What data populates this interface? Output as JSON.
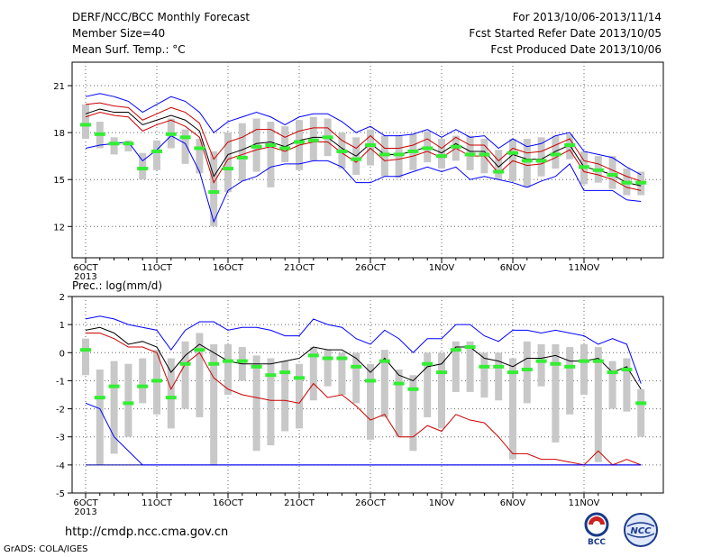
{
  "header": {
    "title": "DERF/NCC/BCC Monthly Forecast",
    "member_size": "Member Size=40",
    "variable": "Mean Surf. Temp.: °C",
    "period": "For 2013/10/06-2013/11/14",
    "started": "Fcst Started Refer Date 2013/10/05",
    "produced": "Fcst Produced Date 2013/10/06"
  },
  "footer": {
    "url": "http://cmdp.ncc.cma.gov.cn",
    "credit": "GrADS: COLA/IGES",
    "logo_bcc": "BCC",
    "logo_ncc": "NCC"
  },
  "colors": {
    "max_min": "#0000ff",
    "spread": "#cc0000",
    "mean": "#000000",
    "median": "#33ee33",
    "box": "#c8c8c8",
    "base": "#0000aa"
  },
  "chart_data": [
    {
      "type": "box",
      "title": "Mean Surf. Temp.: °C",
      "ylim": [
        10.0,
        22.5
      ],
      "yticks": [
        12,
        15,
        18,
        21
      ],
      "xlabels": [
        "6OCT",
        "11OCT",
        "16OCT",
        "21OCT",
        "26OCT",
        "1NOV",
        "6NOV",
        "11NOV"
      ],
      "xyear": "2013",
      "days": 40,
      "median": [
        18.5,
        17.9,
        17.3,
        17.3,
        15.7,
        16.8,
        17.9,
        17.7,
        17.0,
        14.2,
        15.7,
        16.4,
        17.1,
        17.2,
        17.0,
        17.4,
        17.5,
        17.7,
        16.8,
        16.3,
        17.2,
        16.6,
        16.6,
        16.8,
        17.0,
        16.5,
        17.1,
        16.6,
        16.6,
        15.5,
        16.7,
        16.2,
        16.2,
        16.6,
        17.2,
        15.8,
        15.6,
        15.3,
        14.8,
        14.8
      ],
      "box_top": [
        19.8,
        18.7,
        17.7,
        17.5,
        16.7,
        17.5,
        18.9,
        18.2,
        17.6,
        16.8,
        18.0,
        18.6,
        18.9,
        18.7,
        18.4,
        18.8,
        19.0,
        18.9,
        18.0,
        17.7,
        18.2,
        17.8,
        17.8,
        17.9,
        18.1,
        17.6,
        17.8,
        17.8,
        17.6,
        16.9,
        17.6,
        17.6,
        17.7,
        17.8,
        17.9,
        16.8,
        16.5,
        16.5,
        15.7,
        15.5
      ],
      "box_bottom": [
        17.6,
        17.0,
        16.6,
        16.8,
        15.0,
        15.6,
        17.0,
        16.0,
        15.4,
        12.0,
        14.2,
        14.9,
        15.5,
        14.5,
        16.1,
        15.6,
        16.2,
        16.5,
        15.7,
        15.3,
        15.9,
        15.2,
        15.1,
        15.6,
        16.1,
        15.7,
        16.2,
        15.6,
        15.4,
        15.0,
        14.9,
        14.5,
        15.2,
        15.7,
        16.3,
        14.7,
        14.8,
        14.4,
        14.0,
        14.0
      ],
      "series": [
        {
          "name": "max",
          "values": [
            20.3,
            20.5,
            20.3,
            20.0,
            19.3,
            19.8,
            20.3,
            20.0,
            19.3,
            18.0,
            18.7,
            19.0,
            19.3,
            19.0,
            18.5,
            19.0,
            19.2,
            19.2,
            18.7,
            18.0,
            18.4,
            17.8,
            17.8,
            17.9,
            18.2,
            17.7,
            18.2,
            17.7,
            17.8,
            17.0,
            17.6,
            17.1,
            17.3,
            17.8,
            18.0,
            16.8,
            16.6,
            16.4,
            15.8,
            15.3
          ]
        },
        {
          "name": "upper",
          "values": [
            19.8,
            19.9,
            19.7,
            19.6,
            18.8,
            19.2,
            19.6,
            19.3,
            18.6,
            16.3,
            17.4,
            17.7,
            18.2,
            18.2,
            17.7,
            18.1,
            18.3,
            18.3,
            17.5,
            17.0,
            17.8,
            17.0,
            17.0,
            17.2,
            17.6,
            17.0,
            17.7,
            17.2,
            17.2,
            16.2,
            17.0,
            16.7,
            16.8,
            17.2,
            17.6,
            16.2,
            16.0,
            15.6,
            15.2,
            14.9
          ]
        },
        {
          "name": "mean",
          "values": [
            19.2,
            19.5,
            19.3,
            19.3,
            18.5,
            18.8,
            19.1,
            18.8,
            18.1,
            15.2,
            16.6,
            16.9,
            17.3,
            17.4,
            17.1,
            17.5,
            17.7,
            17.7,
            17.0,
            16.5,
            17.3,
            16.6,
            16.6,
            16.8,
            17.1,
            16.7,
            17.3,
            16.8,
            16.8,
            15.8,
            16.6,
            16.3,
            16.3,
            16.8,
            17.2,
            15.8,
            15.6,
            15.3,
            14.8,
            14.6
          ]
        },
        {
          "name": "lower",
          "values": [
            19.0,
            19.3,
            19.1,
            19.0,
            18.1,
            18.5,
            18.8,
            18.4,
            17.7,
            14.8,
            16.3,
            16.6,
            16.9,
            17.1,
            16.8,
            17.2,
            17.4,
            17.4,
            16.7,
            16.1,
            17.0,
            16.2,
            16.3,
            16.5,
            16.8,
            16.4,
            17.0,
            16.5,
            16.5,
            15.4,
            16.2,
            15.9,
            16.0,
            16.4,
            16.9,
            15.5,
            15.3,
            15.0,
            14.5,
            14.3
          ]
        },
        {
          "name": "min",
          "values": [
            17.0,
            17.2,
            17.3,
            17.4,
            16.2,
            16.9,
            17.8,
            17.3,
            15.5,
            12.3,
            14.3,
            14.9,
            15.2,
            15.8,
            16.0,
            16.0,
            16.2,
            16.2,
            15.8,
            14.8,
            14.8,
            15.2,
            15.2,
            15.5,
            15.8,
            15.5,
            15.8,
            15.0,
            15.2,
            15.0,
            14.8,
            14.5,
            14.9,
            15.2,
            16.0,
            14.3,
            14.3,
            14.3,
            13.7,
            13.6
          ]
        }
      ]
    },
    {
      "type": "box",
      "title": "Prec.: log(mm/d)",
      "ylim": [
        -5,
        2
      ],
      "yticks": [
        -5,
        -4,
        -3,
        -2,
        -1,
        0,
        1,
        2
      ],
      "xlabels": [
        "6OCT",
        "11OCT",
        "16OCT",
        "21OCT",
        "26OCT",
        "1NOV",
        "6NOV",
        "11NOV"
      ],
      "xyear": "2013",
      "days": 40,
      "median": [
        0.1,
        -1.6,
        -1.2,
        -1.8,
        -1.2,
        -1.0,
        -1.6,
        -0.4,
        0.1,
        -0.4,
        -0.3,
        -0.3,
        -0.5,
        -0.8,
        -0.7,
        -0.9,
        -0.1,
        -0.2,
        -0.2,
        -0.5,
        -1.0,
        -0.3,
        -1.1,
        -1.3,
        -0.4,
        -0.7,
        0.1,
        0.2,
        -0.5,
        -0.5,
        -0.7,
        -0.6,
        -0.3,
        -0.4,
        -0.5,
        -0.3,
        -0.3,
        -0.7,
        -0.6,
        -1.8
      ],
      "box_top": [
        0.5,
        -0.6,
        -0.3,
        -0.4,
        -0.2,
        0.1,
        -0.2,
        0.4,
        0.7,
        0.3,
        0.3,
        0.2,
        -0.1,
        -0.2,
        -0.3,
        -0.4,
        0.2,
        0.1,
        0.0,
        0.0,
        -0.4,
        0.1,
        -0.6,
        -0.8,
        0.0,
        0.0,
        0.4,
        0.4,
        0.0,
        0.0,
        -0.2,
        0.4,
        0.3,
        0.3,
        0.2,
        0.3,
        0.2,
        -0.3,
        -0.2,
        -1.3
      ],
      "box_bottom": [
        -0.8,
        -4.0,
        -3.6,
        -3.0,
        -1.8,
        -2.2,
        -2.7,
        -2.0,
        -2.3,
        -4.0,
        -1.5,
        -1.0,
        -3.5,
        -3.3,
        -2.8,
        -2.7,
        -1.7,
        -1.2,
        -1.5,
        -1.8,
        -3.1,
        -2.3,
        -3.0,
        -3.5,
        -2.3,
        -2.7,
        -1.4,
        -1.4,
        -1.6,
        -1.7,
        -3.8,
        -1.8,
        -1.2,
        -3.2,
        -2.2,
        -1.5,
        -3.9,
        -2.0,
        -2.1,
        -3.0
      ],
      "series": [
        {
          "name": "max",
          "values": [
            1.2,
            1.3,
            1.2,
            1.0,
            0.9,
            0.8,
            0.1,
            0.8,
            1.1,
            1.1,
            0.8,
            0.9,
            0.9,
            0.8,
            0.6,
            0.6,
            1.2,
            1.0,
            0.9,
            0.5,
            0.3,
            0.8,
            0.5,
            0.0,
            0.5,
            0.5,
            1.0,
            1.0,
            0.6,
            0.4,
            0.8,
            0.8,
            0.7,
            0.8,
            0.7,
            0.6,
            0.3,
            0.5,
            0.3,
            -1.1
          ]
        },
        {
          "name": "mean",
          "values": [
            0.8,
            0.9,
            0.7,
            0.3,
            0.4,
            0.2,
            -0.7,
            -0.1,
            0.3,
            0.0,
            -0.3,
            -0.4,
            -0.4,
            -0.4,
            -0.3,
            -0.2,
            0.2,
            0.1,
            0.1,
            -0.2,
            -0.7,
            -0.2,
            -0.8,
            -1.0,
            -0.5,
            -0.4,
            0.2,
            0.2,
            -0.2,
            -0.3,
            -0.5,
            -0.2,
            -0.2,
            -0.1,
            -0.3,
            -0.3,
            -0.2,
            -0.7,
            -0.5,
            -1.3
          ]
        },
        {
          "name": "lower",
          "values": [
            0.7,
            0.7,
            0.5,
            0.2,
            0.2,
            0.0,
            -1.3,
            -0.4,
            0.0,
            -0.9,
            -1.3,
            -1.5,
            -1.6,
            -1.7,
            -1.7,
            -1.8,
            -1.1,
            -1.6,
            -1.5,
            -1.9,
            -2.4,
            -2.2,
            -3.0,
            -3.0,
            -2.6,
            -2.8,
            -2.2,
            -2.4,
            -2.5,
            -3.0,
            -3.6,
            -3.6,
            -3.8,
            -3.8,
            -3.9,
            -4.0,
            -3.5,
            -4.0,
            -3.8,
            -4.0
          ]
        },
        {
          "name": "min",
          "values": [
            -1.8,
            -2.0,
            -3.0,
            -3.5,
            -4.0,
            -4.0,
            -4.0,
            -4.0,
            -4.0,
            -4.0,
            -4.0,
            -4.0,
            -4.0,
            -4.0,
            -4.0,
            -4.0,
            -4.0,
            -4.0,
            -4.0,
            -4.0,
            -4.0,
            -4.0,
            -4.0,
            -4.0,
            -4.0,
            -4.0,
            -4.0,
            -4.0,
            -4.0,
            -4.0,
            -4.0,
            -4.0,
            -4.0,
            -4.0,
            -4.0,
            -4.0,
            -4.0,
            -4.0,
            -4.0,
            -4.0
          ]
        }
      ]
    }
  ]
}
